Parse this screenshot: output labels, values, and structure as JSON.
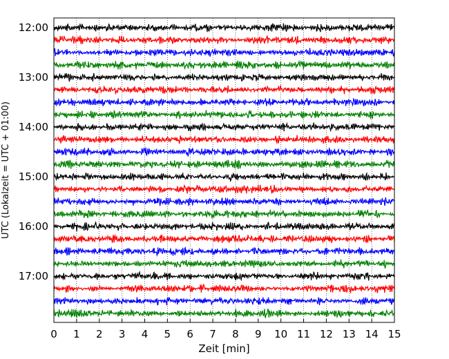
{
  "chart_data": {
    "type": "line",
    "title": "",
    "xlabel": "Zeit  [min]",
    "ylabel": "UTC (Lokalzeit = UTC + 01:00)",
    "xlim": [
      0,
      15
    ],
    "x_ticks": [
      0,
      1,
      2,
      3,
      4,
      5,
      6,
      7,
      8,
      9,
      10,
      11,
      12,
      13,
      14,
      15
    ],
    "x_tick_labels": [
      "0",
      "1",
      "2",
      "3",
      "4",
      "5",
      "6",
      "7",
      "8",
      "9",
      "10",
      "11",
      "12",
      "13",
      "14",
      "15"
    ],
    "y_tick_labels": [
      "12:00",
      "13:00",
      "14:00",
      "15:00",
      "16:00",
      "17:00"
    ],
    "grid": "vertical dotted",
    "trace_interval_min": 15,
    "trace_colors": [
      "#000000",
      "#ff0000",
      "#0000ff",
      "#008000"
    ],
    "traces": [
      "12:00",
      "12:15",
      "12:30",
      "12:45",
      "13:00",
      "13:15",
      "13:30",
      "13:45",
      "14:00",
      "14:15",
      "14:30",
      "14:45",
      "15:00",
      "15:15",
      "15:30",
      "15:45",
      "16:00",
      "16:15",
      "16:30",
      "16:45",
      "17:00",
      "17:15",
      "17:30",
      "17:45"
    ]
  }
}
